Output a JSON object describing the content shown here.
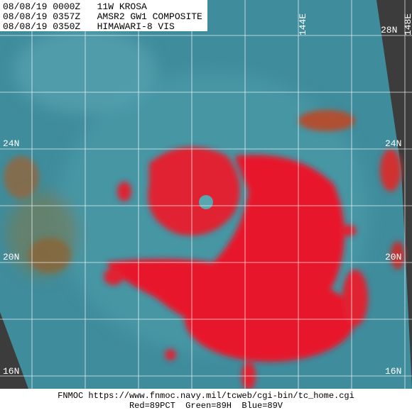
{
  "header": {
    "lines": [
      "08/08/19 0000Z   11W KROSA",
      "08/08/19 0357Z   AMSR2 GW1 COMPOSITE",
      "08/08/19 0350Z   HIMAWARI-8 VIS"
    ]
  },
  "latitude_labels": [
    "28N",
    "24N",
    "20N",
    "16N"
  ],
  "longitude_labels": {
    "top": "144E",
    "right": "148E"
  },
  "footer": {
    "lines": [
      "FNMOC https://www.fnmoc.navy.mil/tcweb/cgi-bin/tc_home.cgi",
      "Red=89PCT  Green=89H  Blue=89V"
    ]
  }
}
